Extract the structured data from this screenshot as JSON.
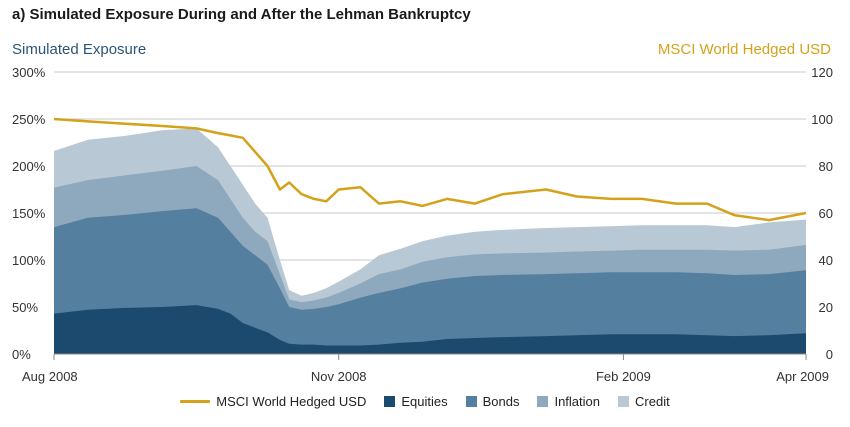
{
  "chart_data": {
    "type": "area",
    "title": "a) Simulated Exposure During and After the Lehman Bankruptcy",
    "ylabel": "Simulated Exposure",
    "y2label": "MSCI World Hedged USD",
    "ylim": [
      0,
      300
    ],
    "y2lim": [
      0,
      120
    ],
    "yticks": [
      "0%",
      "50%",
      "100%",
      "150%",
      "200%",
      "250%",
      "300%"
    ],
    "y2ticks": [
      "0",
      "20",
      "40",
      "60",
      "80",
      "100",
      "120"
    ],
    "xticks": [
      {
        "date": "2008-08-01",
        "label": "Aug 2008"
      },
      {
        "date": "2008-11-01",
        "label": "Nov 2008"
      },
      {
        "date": "2009-02-01",
        "label": "Feb 2009"
      },
      {
        "date": "2009-04-01",
        "label": "Apr 2009"
      }
    ],
    "grid": true,
    "legend_position": "bottom",
    "x": [
      "2008-08-01",
      "2008-08-12",
      "2008-08-24",
      "2008-09-05",
      "2008-09-16",
      "2008-09-23",
      "2008-09-27",
      "2008-10-01",
      "2008-10-05",
      "2008-10-09",
      "2008-10-13",
      "2008-10-16",
      "2008-10-20",
      "2008-10-24",
      "2008-10-28",
      "2008-11-01",
      "2008-11-08",
      "2008-11-14",
      "2008-11-21",
      "2008-11-28",
      "2008-12-06",
      "2008-12-15",
      "2008-12-24",
      "2009-01-07",
      "2009-01-17",
      "2009-01-28",
      "2009-02-07",
      "2009-02-18",
      "2009-02-28",
      "2009-03-09",
      "2009-03-20",
      "2009-04-01"
    ],
    "series": [
      {
        "name": "Equities",
        "color": "#1b4a6e",
        "values": [
          43,
          47,
          49,
          50,
          52,
          48,
          43,
          33,
          28,
          23,
          15,
          11,
          10,
          10,
          9,
          9,
          9,
          10,
          12,
          13,
          16,
          17,
          18,
          19,
          20,
          21,
          21,
          21,
          20,
          19,
          20,
          22
        ]
      },
      {
        "name": "Bonds",
        "color": "#557f9f",
        "values": [
          135,
          145,
          148,
          152,
          155,
          145,
          130,
          115,
          105,
          95,
          70,
          50,
          47,
          48,
          50,
          53,
          60,
          65,
          70,
          76,
          80,
          83,
          84,
          85,
          86,
          87,
          87,
          87,
          86,
          84,
          85,
          89
        ]
      },
      {
        "name": "Inflation",
        "color": "#8ea9bd",
        "values": [
          177,
          185,
          190,
          195,
          200,
          185,
          165,
          145,
          130,
          120,
          85,
          58,
          55,
          57,
          60,
          65,
          75,
          85,
          90,
          98,
          103,
          106,
          107,
          108,
          109,
          110,
          111,
          111,
          111,
          110,
          111,
          116
        ]
      },
      {
        "name": "Credit",
        "color": "#b8c8d4",
        "values": [
          216,
          228,
          232,
          238,
          240,
          220,
          200,
          180,
          160,
          145,
          100,
          68,
          62,
          65,
          70,
          77,
          90,
          105,
          112,
          120,
          126,
          130,
          132,
          134,
          135,
          136,
          137,
          137,
          137,
          135,
          140,
          143
        ]
      }
    ],
    "line_series": {
      "name": "MSCI World Hedged USD",
      "color": "#d4a21a",
      "axis": "right",
      "values": [
        100,
        99,
        98,
        97,
        96,
        94,
        93,
        92,
        86,
        80,
        70,
        73,
        68,
        66,
        65,
        70,
        71,
        64,
        65,
        63,
        66,
        64,
        68,
        70,
        67,
        66,
        66,
        64,
        64,
        59,
        57,
        60
      ]
    }
  },
  "legend": {
    "msci": "MSCI World Hedged USD",
    "equities": "Equities",
    "bonds": "Bonds",
    "inflation": "Inflation",
    "credit": "Credit"
  }
}
